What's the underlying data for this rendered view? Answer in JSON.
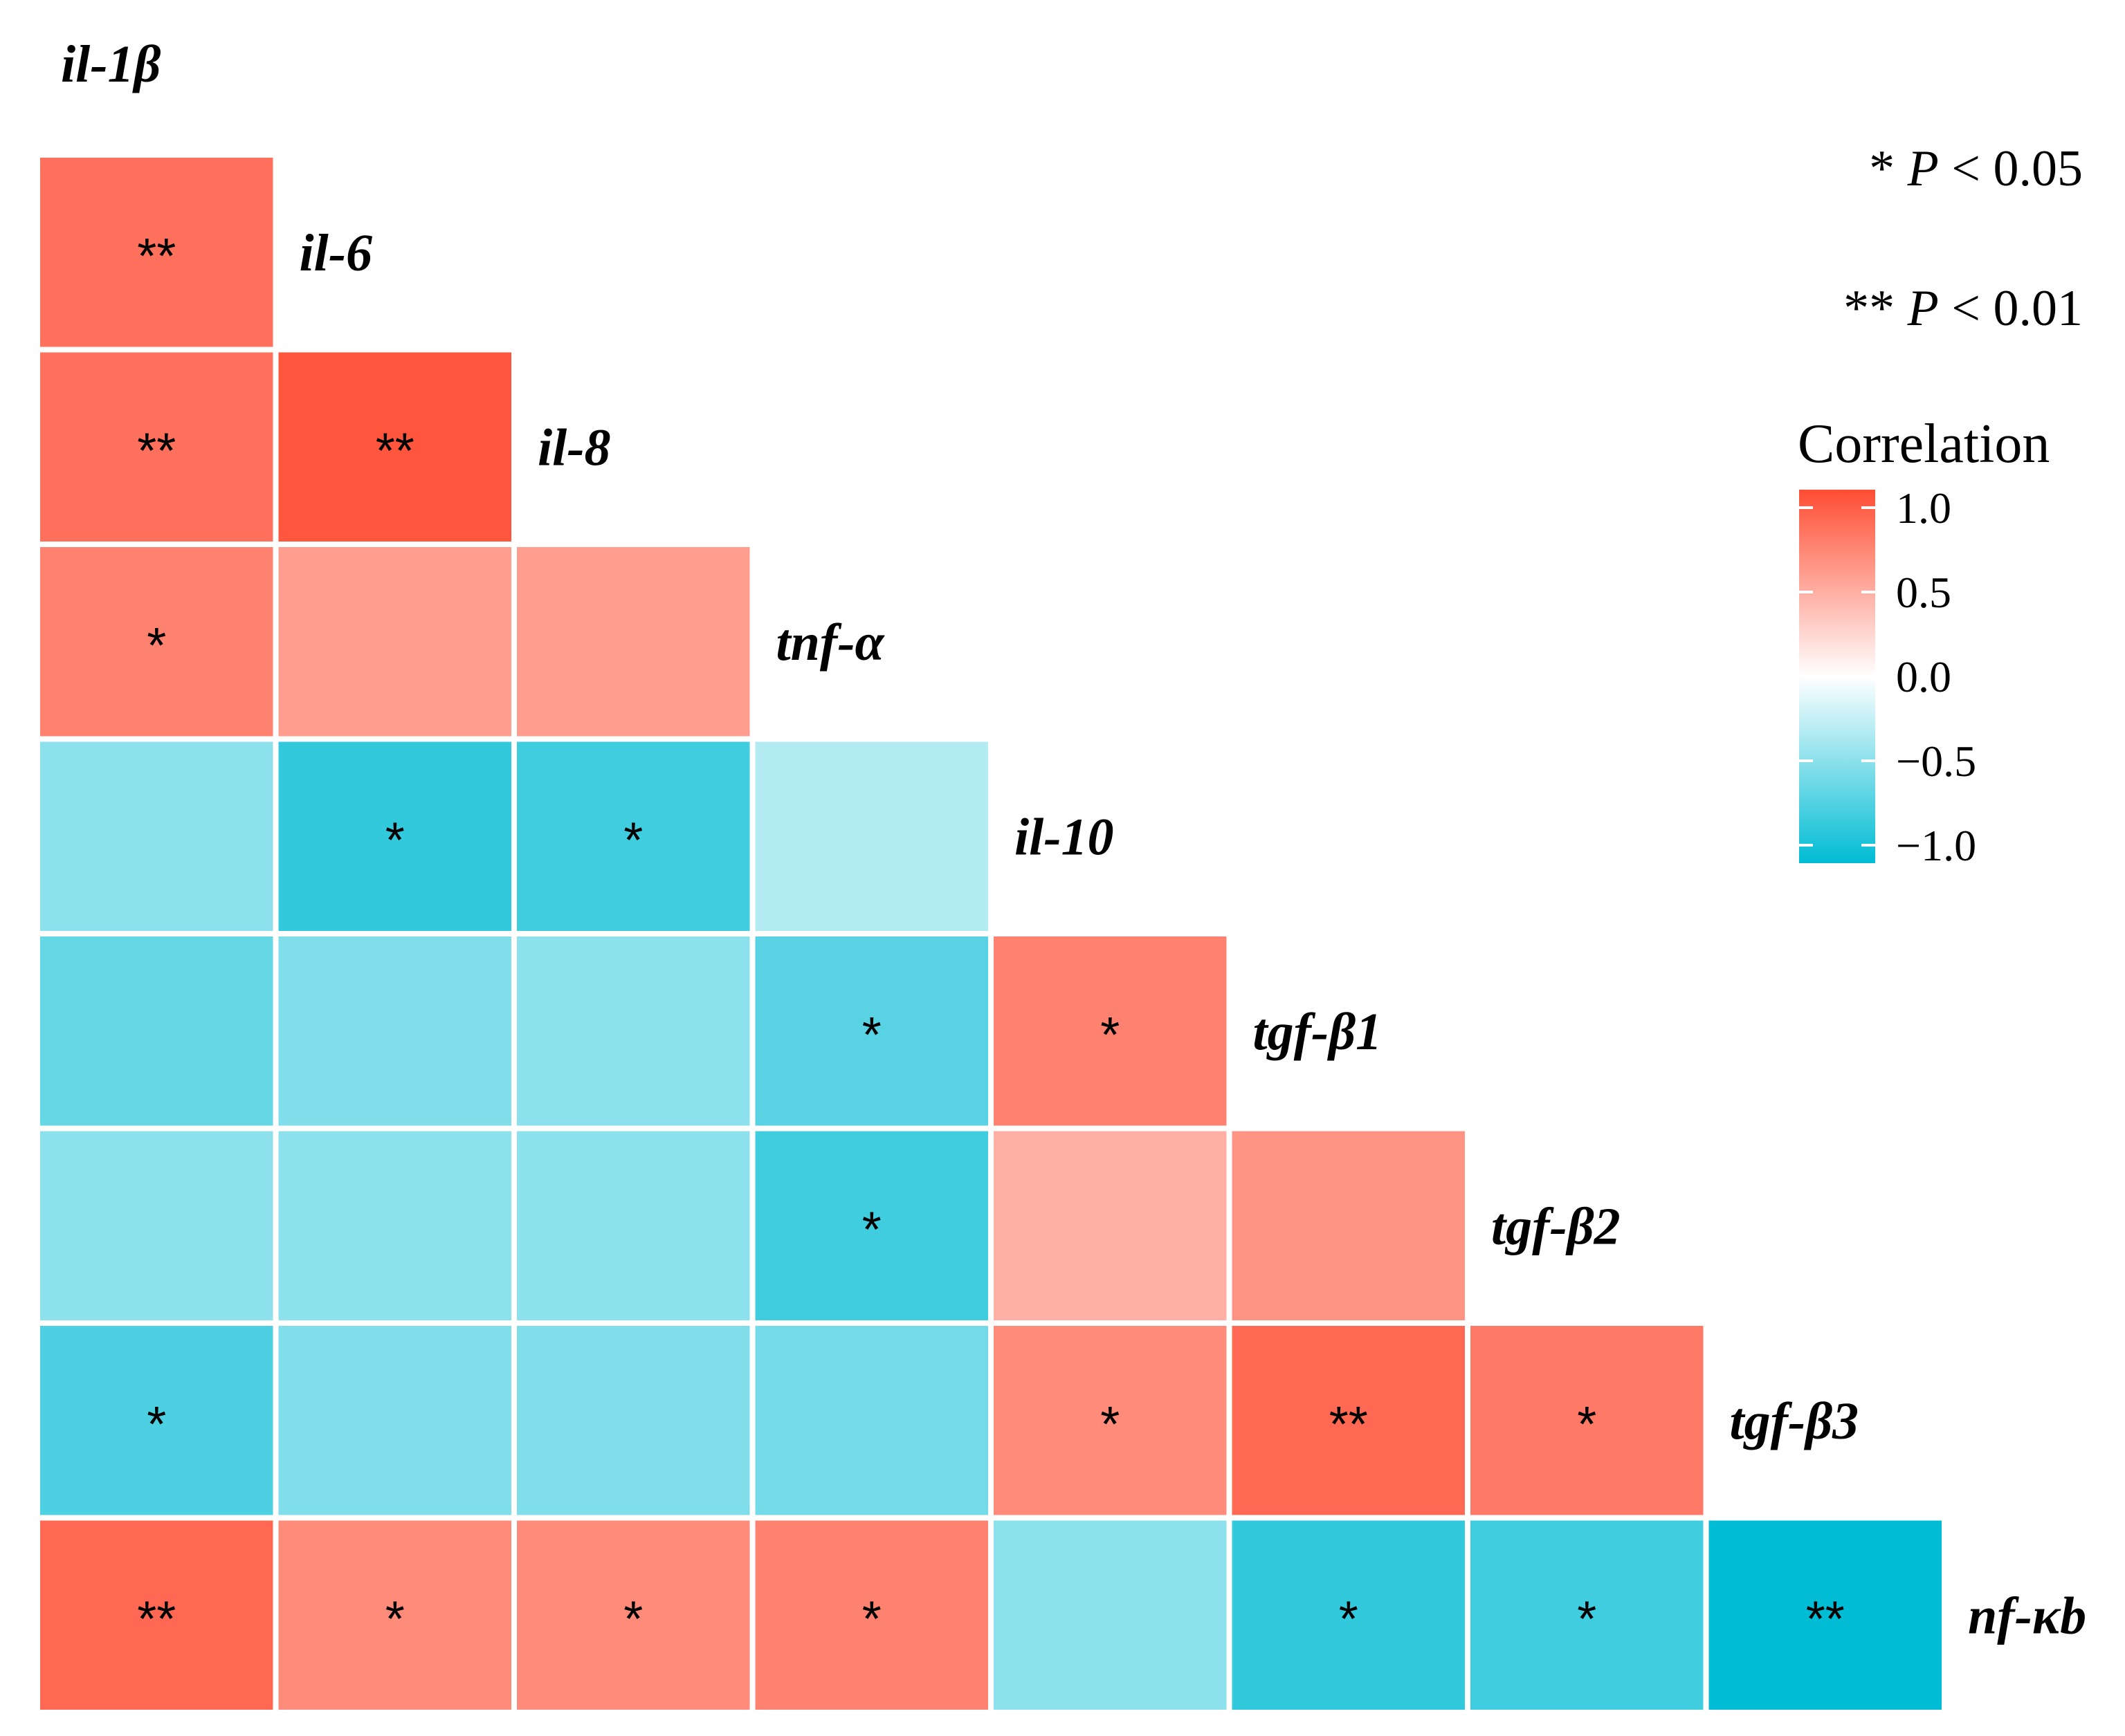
{
  "chart_data": {
    "type": "heatmap",
    "title": "",
    "variables": [
      "il-1β",
      "il-6",
      "il-8",
      "tnf-α",
      "il-10",
      "tgf-β1",
      "tgf-β2",
      "tgf-β3",
      "nf-κb"
    ],
    "cells": [
      {
        "row": "il-6",
        "col": "il-1β",
        "value": 0.8,
        "sig": "**"
      },
      {
        "row": "il-8",
        "col": "il-1β",
        "value": 0.8,
        "sig": "**"
      },
      {
        "row": "il-8",
        "col": "il-6",
        "value": 0.95,
        "sig": "**"
      },
      {
        "row": "tnf-α",
        "col": "il-1β",
        "value": 0.7,
        "sig": "*"
      },
      {
        "row": "tnf-α",
        "col": "il-6",
        "value": 0.55,
        "sig": ""
      },
      {
        "row": "tnf-α",
        "col": "il-8",
        "value": 0.55,
        "sig": ""
      },
      {
        "row": "il-10",
        "col": "il-1β",
        "value": -0.45,
        "sig": ""
      },
      {
        "row": "il-10",
        "col": "il-6",
        "value": -0.8,
        "sig": "*"
      },
      {
        "row": "il-10",
        "col": "il-8",
        "value": -0.75,
        "sig": "*"
      },
      {
        "row": "il-10",
        "col": "tnf-α",
        "value": -0.3,
        "sig": ""
      },
      {
        "row": "tgf-β1",
        "col": "il-1β",
        "value": -0.6,
        "sig": ""
      },
      {
        "row": "tgf-β1",
        "col": "il-6",
        "value": -0.5,
        "sig": ""
      },
      {
        "row": "tgf-β1",
        "col": "il-8",
        "value": -0.45,
        "sig": ""
      },
      {
        "row": "tgf-β1",
        "col": "tnf-α",
        "value": -0.65,
        "sig": "*"
      },
      {
        "row": "tgf-β1",
        "col": "il-10",
        "value": 0.7,
        "sig": "*"
      },
      {
        "row": "tgf-β2",
        "col": "il-1β",
        "value": -0.45,
        "sig": ""
      },
      {
        "row": "tgf-β2",
        "col": "il-6",
        "value": -0.45,
        "sig": ""
      },
      {
        "row": "tgf-β2",
        "col": "il-8",
        "value": -0.45,
        "sig": ""
      },
      {
        "row": "tgf-β2",
        "col": "tnf-α",
        "value": -0.75,
        "sig": "*"
      },
      {
        "row": "tgf-β2",
        "col": "il-10",
        "value": 0.45,
        "sig": ""
      },
      {
        "row": "tgf-β2",
        "col": "tgf-β1",
        "value": 0.6,
        "sig": ""
      },
      {
        "row": "tgf-β3",
        "col": "il-1β",
        "value": -0.7,
        "sig": "*"
      },
      {
        "row": "tgf-β3",
        "col": "il-6",
        "value": -0.5,
        "sig": ""
      },
      {
        "row": "tgf-β3",
        "col": "il-8",
        "value": -0.5,
        "sig": ""
      },
      {
        "row": "tgf-β3",
        "col": "tnf-α",
        "value": -0.55,
        "sig": ""
      },
      {
        "row": "tgf-β3",
        "col": "il-10",
        "value": 0.65,
        "sig": "*"
      },
      {
        "row": "tgf-β3",
        "col": "tgf-β1",
        "value": 0.85,
        "sig": "**"
      },
      {
        "row": "tgf-β3",
        "col": "tgf-β2",
        "value": 0.75,
        "sig": "*"
      },
      {
        "row": "nf-κb",
        "col": "il-1β",
        "value": 0.85,
        "sig": "**"
      },
      {
        "row": "nf-κb",
        "col": "il-6",
        "value": 0.65,
        "sig": "*"
      },
      {
        "row": "nf-κb",
        "col": "il-8",
        "value": 0.65,
        "sig": "*"
      },
      {
        "row": "nf-κb",
        "col": "tnf-α",
        "value": 0.7,
        "sig": "*"
      },
      {
        "row": "nf-κb",
        "col": "il-10",
        "value": -0.45,
        "sig": ""
      },
      {
        "row": "nf-κb",
        "col": "tgf-β1",
        "value": -0.8,
        "sig": "*"
      },
      {
        "row": "nf-κb",
        "col": "tgf-β2",
        "value": -0.75,
        "sig": "*"
      },
      {
        "row": "nf-κb",
        "col": "tgf-β3",
        "value": -1.0,
        "sig": "**"
      }
    ],
    "significance_legend": [
      {
        "mark": "*",
        "p_label": "P",
        "rest": "< 0.05"
      },
      {
        "mark": "**",
        "p_label": "P",
        "rest": "< 0.01"
      }
    ],
    "colorbar": {
      "title": "Correlation",
      "range": [
        -1.0,
        1.0
      ],
      "ticks": [
        1.0,
        0.5,
        0.0,
        -0.5,
        -1.0
      ],
      "tick_labels": [
        "1.0",
        "0.5",
        "0.0",
        "−0.5",
        "−1.0"
      ],
      "colors": {
        "high": "#ff4d33",
        "mid": "#ffffff",
        "low": "#00bcd4"
      }
    }
  }
}
